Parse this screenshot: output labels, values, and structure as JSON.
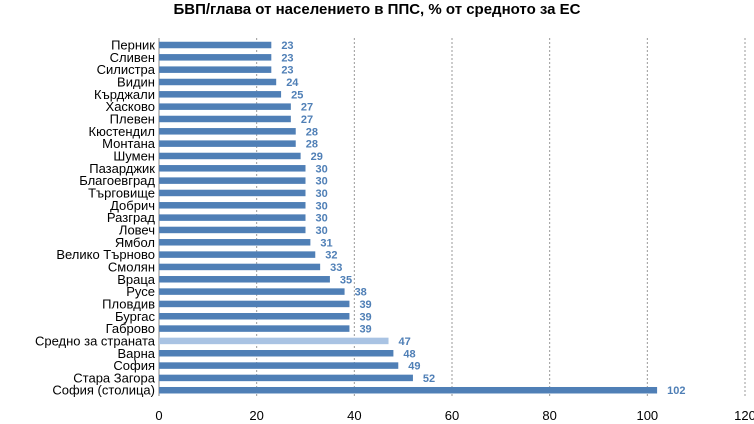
{
  "chart_data": {
    "type": "bar",
    "orientation": "horizontal",
    "title": "БВП/глава от населението в ППС, % от средното за ЕС",
    "xlabel": "",
    "ylabel": "",
    "xlim": [
      0,
      120
    ],
    "xticks": [
      0,
      20,
      40,
      60,
      80,
      100,
      120
    ],
    "grid": "vertical-dashed",
    "categories": [
      "Перник",
      "Сливен",
      "Силистра",
      "Видин",
      "Кърджали",
      "Хасково",
      "Плевен",
      "Кюстендил",
      "Монтана",
      "Шумен",
      "Пазарджик",
      "Благоевград",
      "Търговище",
      "Добрич",
      "Разград",
      "Ловеч",
      "Ямбол",
      "Велико Търново",
      "Смолян",
      "Враца",
      "Русе",
      "Пловдив",
      "Бургас",
      "Габрово",
      "Средно за страната",
      "Варна",
      "София",
      "Стара Загора",
      "София (столица)"
    ],
    "values": [
      23,
      23,
      23,
      24,
      25,
      27,
      27,
      28,
      28,
      29,
      30,
      30,
      30,
      30,
      30,
      30,
      31,
      32,
      33,
      35,
      38,
      39,
      39,
      39,
      47,
      48,
      49,
      52,
      102
    ],
    "highlight_category": "Средно за страната",
    "colors": {
      "bar": "#4f7fb6",
      "highlight": "#a9c3e3",
      "label": "#4f7fb6",
      "grid": "#999999"
    }
  }
}
